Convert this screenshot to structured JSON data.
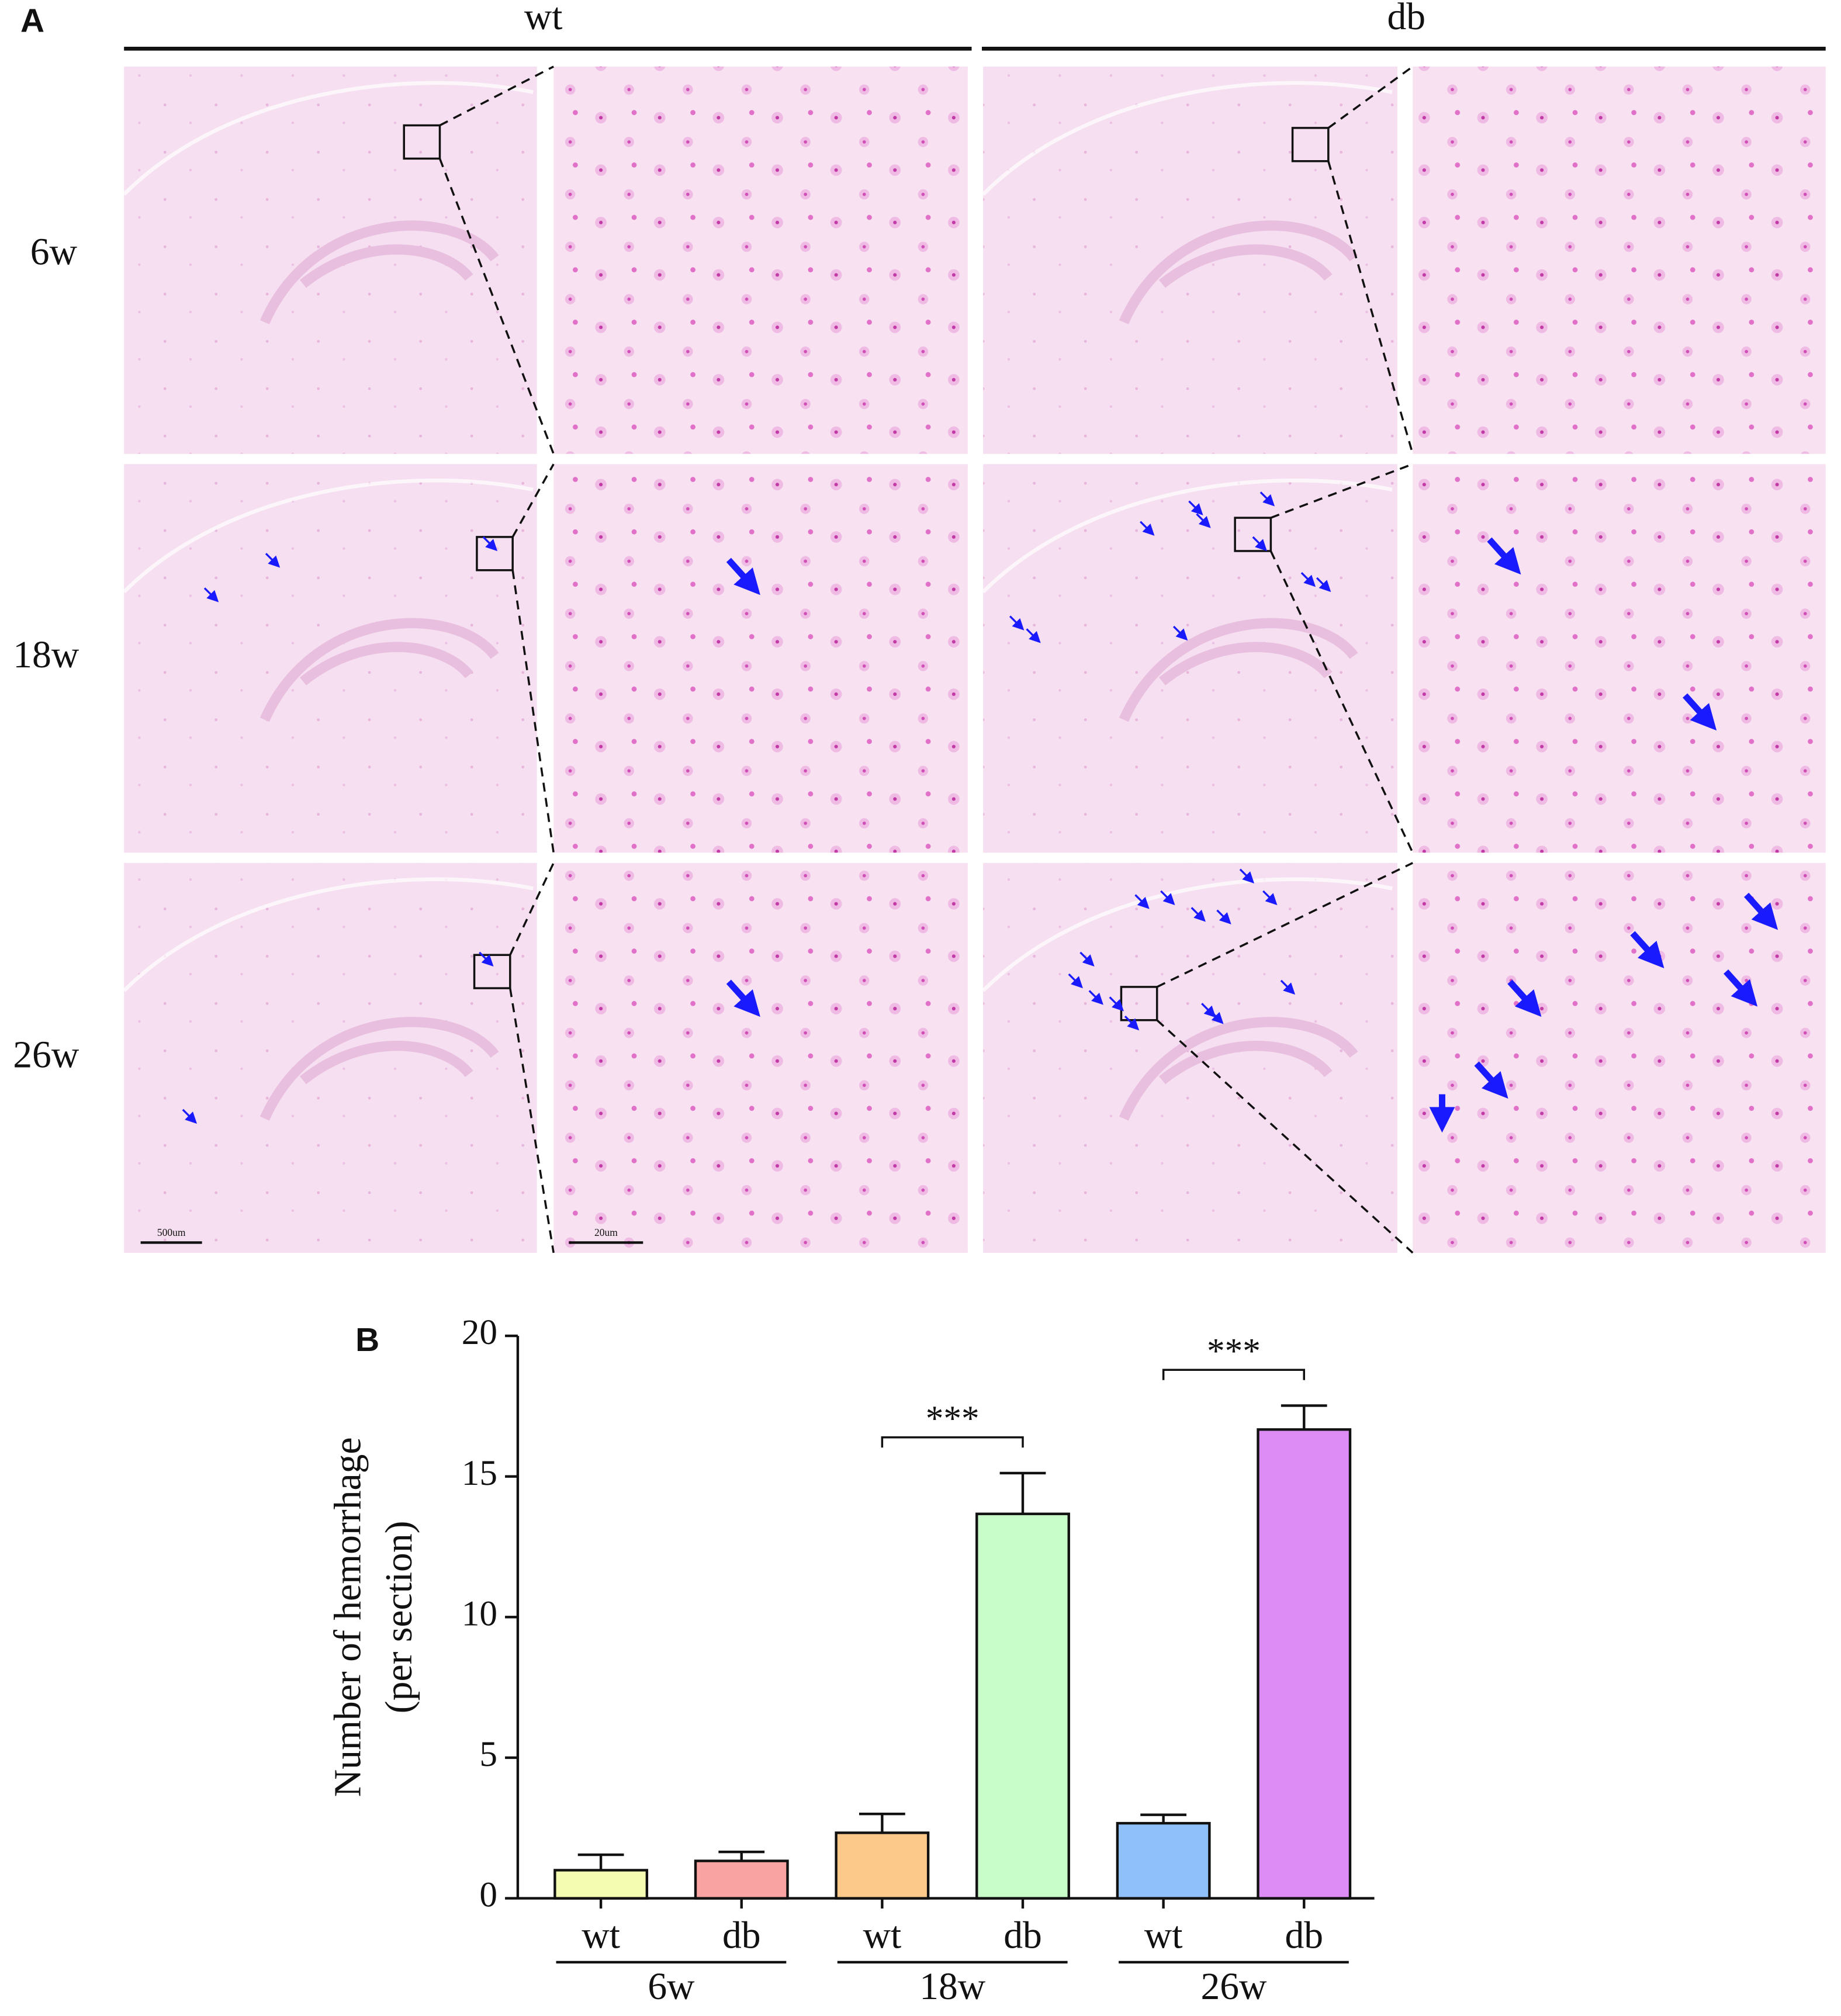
{
  "panel_a": {
    "label": "A",
    "columns": [
      "wt",
      "db"
    ],
    "rows": [
      "6w",
      "18w",
      "26w"
    ],
    "scale_bars": [
      "500um",
      "20um"
    ]
  },
  "chart_data": {
    "type": "bar",
    "panel_label": "B",
    "y_label": [
      "Number of hemorrhage",
      "(per section)"
    ],
    "categories": [
      "wt",
      "db",
      "wt",
      "db",
      "wt",
      "db"
    ],
    "groups": [
      "6w",
      "18w",
      "26w"
    ],
    "values": [
      1.0,
      1.33,
      2.33,
      13.67,
      2.67,
      16.67
    ],
    "errors": [
      0.55,
      0.32,
      0.67,
      1.45,
      0.3,
      0.85
    ],
    "colors": [
      "#f3fcb0",
      "#f9a3a3",
      "#fcc98b",
      "#c8fcc8",
      "#8fc0f9",
      "#dc8cf4"
    ],
    "ylim": [
      0,
      20
    ],
    "yticks": [
      0,
      5,
      10,
      15,
      20
    ],
    "annotations": [
      {
        "text": "***",
        "group": "18w"
      },
      {
        "text": "***",
        "group": "26w"
      }
    ]
  }
}
